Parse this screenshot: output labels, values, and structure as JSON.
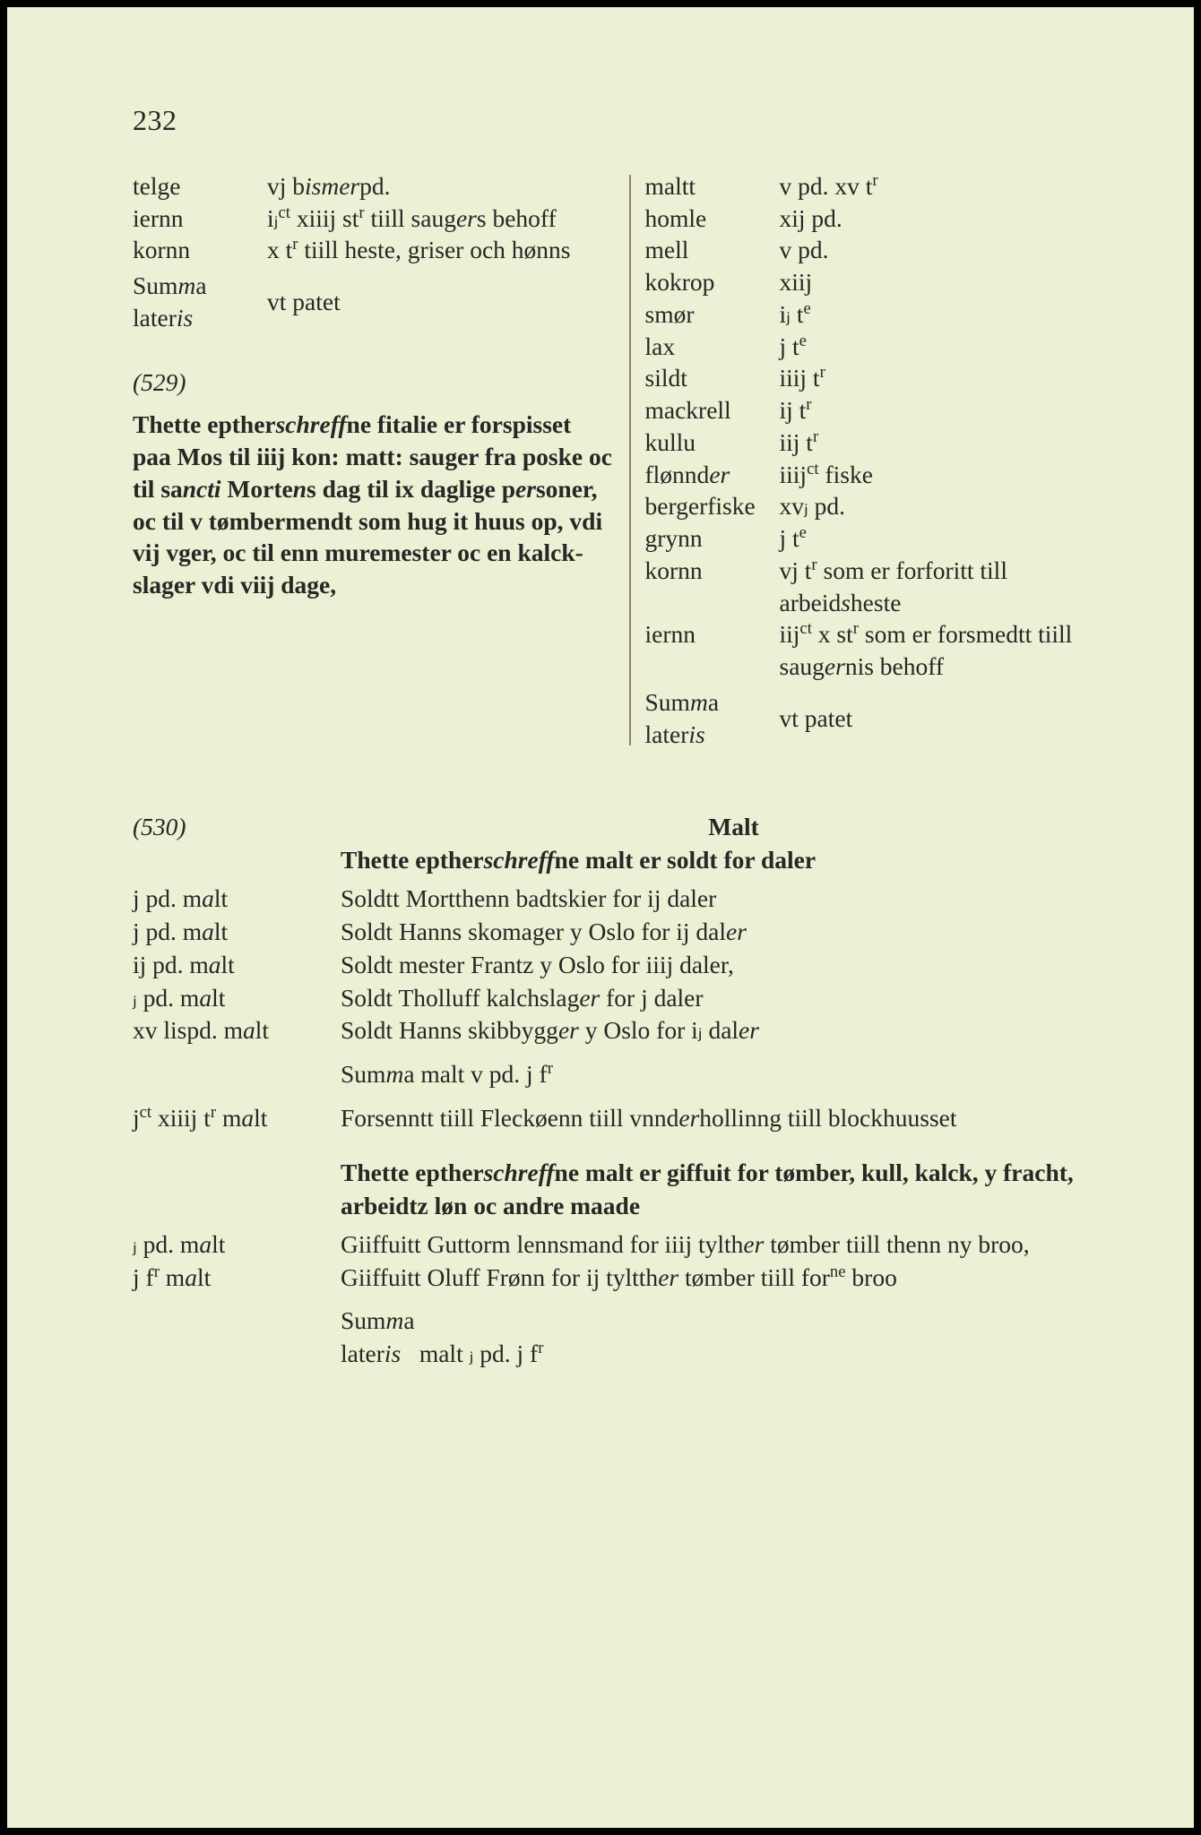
{
  "page_number": "232",
  "colors": {
    "paper": "#edf0d5",
    "border": "#000000",
    "text": "#272724",
    "rule": "#88886a"
  },
  "typography": {
    "body_pt": 21,
    "pageno_pt": 24,
    "family": "Georgia / Times-like serif"
  },
  "top_left": {
    "items": [
      {
        "k": "telge",
        "v_html": "vj b<span class='ital'>ismer</span>pd."
      },
      {
        "k": "iernn",
        "v_html": "i&#x2C7C;<span class='sup'>ct</span> xiiij st<span class='sup'>r</span> tiill sau&shy;g<span class='ital'>er</span>s behoff"
      },
      {
        "k": "kornn",
        "v_html": "x t<span class='sup'>r</span> tiill heste, griser och h&oslash;nns"
      }
    ],
    "summa_html": "Sum<span class='ital'>m</span>a<br>later<span class='ital'>is</span>",
    "summa_val": "vt patet",
    "marginal": "(529)",
    "para_html": "<span class='bold'>Thette epther</span><span class='ital bold'>schreff</span><span class='bold'>ne fitalie er forspisset paa Mos til iiij kon: matt: sauger fra poske oc til sa</span><span class='ital bold'>ncti</span><span class='bold'> Morte</span><span class='ital bold'>n</span><span class='bold'>s dag til ix daglige p</span><span class='ital bold'>er</span><span class='bold'>soner, oc til v t&oslash;mbermendt som hug it huus op, vdi vij vger, oc til enn muremester oc en kalck&shy;slager vdi viij dage,</span>"
  },
  "top_right": {
    "items": [
      {
        "k": "maltt",
        "v_html": "v pd. xv t<span class='sup'>r</span>"
      },
      {
        "k": "homle",
        "v_html": "xij pd."
      },
      {
        "k": "mell",
        "v_html": "v pd."
      },
      {
        "k": "kokrop",
        "v_html": "xiij"
      },
      {
        "k": "sm&oslash;r",
        "v_html": "i&#x2C7C; t<span class='sup'>e</span>"
      },
      {
        "k": "lax",
        "v_html": "j t<span class='sup'>e</span>"
      },
      {
        "k": "sildt",
        "v_html": "iiij t<span class='sup'>r</span>"
      },
      {
        "k": "mackrell",
        "v_html": "ij t<span class='sup'>r</span>"
      },
      {
        "k": "kullu",
        "v_html": "iij t<span class='sup'>r</span>"
      },
      {
        "k": "fl&oslash;nnd<span class='ital'>er</span>",
        "v_html": "iiij<span class='sup'>ct</span> fiske"
      },
      {
        "k": "bergerfiske",
        "v_html": "xv&#x2C7C; pd."
      },
      {
        "k": "grynn",
        "v_html": "j t<span class='sup'>e</span>"
      },
      {
        "k": "kornn",
        "v_html": "vj t<span class='sup'>r</span> som er forforitt till arbeid<span class='ital'>s</span>heste"
      },
      {
        "k": "iernn",
        "v_html": "iij<span class='sup'>ct</span> x st<span class='sup'>r</span> som er for&shy;smedtt tiill saug<span class='ital'>er</span>nis behoff"
      }
    ],
    "summa_html": "Sum<span class='ital'>m</span>a<br>later<span class='ital'>is</span>",
    "summa_val": "vt patet"
  },
  "lower": {
    "marginal": "(530)",
    "title": "Malt",
    "subhead1_html": "<span class='bold'>Thette epther</span><span class='ital bold'>schreff</span><span class='bold'>ne malt er soldt for daler</span>",
    "rows1": [
      {
        "l_html": "j pd. m<span class='ital'>a</span>lt",
        "r_html": "Soldtt Mortthenn badtskier for ij daler"
      },
      {
        "l_html": "j pd. m<span class='ital'>a</span>lt",
        "r_html": "Soldt Hanns skomager y Oslo for ij dal<span class='ital'>er</span>"
      },
      {
        "l_html": "ij pd. m<span class='ital'>a</span>lt",
        "r_html": "Soldt mester Frantz y Oslo for iiij daler,"
      },
      {
        "l_html": "&#x2C7C; pd. m<span class='ital'>a</span>lt",
        "r_html": "Soldt Tholluff kalchslag<span class='ital'>er</span> for j daler"
      },
      {
        "l_html": "xv lispd. m<span class='ital'>a</span>lt",
        "r_html": "Soldt Hanns skibbygg<span class='ital'>er</span> y Oslo for i&#x2C7C; dal<span class='ital'>er</span>"
      }
    ],
    "summa1_html": "Sum<span class='ital'>m</span>a malt v pd. j f<span class='sup'>r</span>",
    "rows2": [
      {
        "l_html": "j<span class='sup'>ct</span> xiiij t<span class='sup'>r</span> m<span class='ital'>a</span>lt",
        "r_html": "Forsenntt tiill Fleck&oslash;enn tiill vnnd<span class='ital'>er</span>hollinng tiill blockhuusset"
      }
    ],
    "subhead2_html": "<span class='bold'>Thette epther</span><span class='ital bold'>schreff</span><span class='bold'>ne malt er giffuit for t&oslash;mber, kull, kalck, y fracht, arbeidtz l&oslash;n oc andre maade</span>",
    "rows3": [
      {
        "l_html": "&#x2C7C; pd. m<span class='ital'>a</span>lt",
        "r_html": "Giiffuitt Guttorm lennsmand for iiij tylth<span class='ital'>er</span> t&oslash;m&shy;ber tiill thenn ny broo,"
      },
      {
        "l_html": "j f<span class='sup'>r</span> m<span class='ital'>a</span>lt",
        "r_html": "Giiffuitt Oluff Fr&oslash;nn for ij tyltth<span class='ital'>er</span> t&oslash;mber tiill for<span class='sup'>ne</span> broo"
      }
    ],
    "summa2_html": "Sum<span class='ital'>m</span>a<br>later<span class='ital'>is</span>&nbsp;&nbsp; malt &#x2C7C; pd. j f<span class='sup'>r</span>"
  }
}
